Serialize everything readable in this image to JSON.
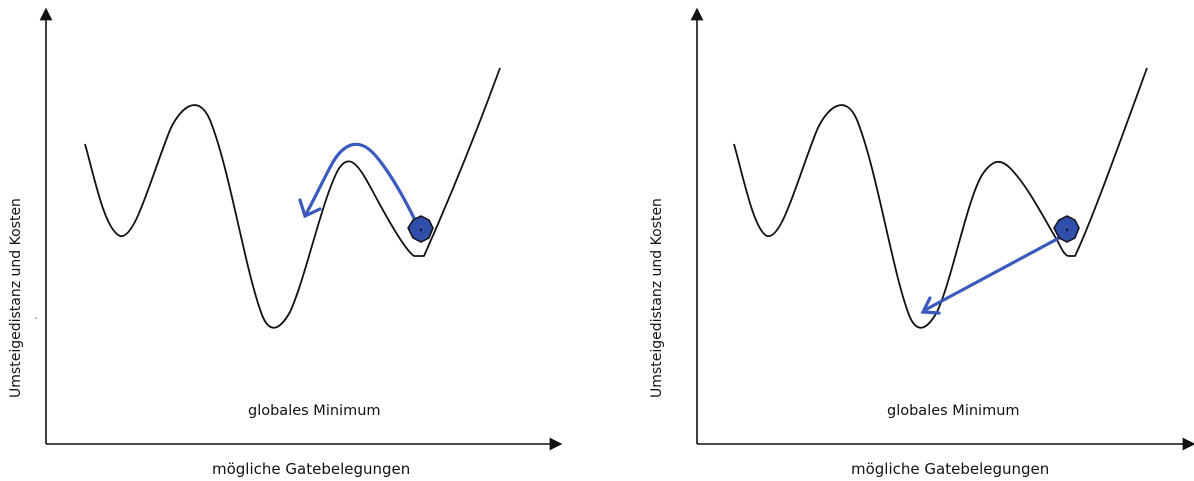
{
  "panels": [
    {
      "y_axis_label": "Umsteigedistanz und Kosten",
      "x_axis_label": "mögliche Gatebelegungen",
      "annotation": "globales Minimum",
      "arrow_color": "#3a5bbd",
      "ball_color": "#2f4faa"
    },
    {
      "y_axis_label": "Umsteigedistanz und Kosten",
      "x_axis_label": "mögliche Gatebelegungen",
      "annotation": "globales Minimum",
      "arrow_color": "#3a5bbd",
      "ball_color": "#2f4faa"
    }
  ]
}
